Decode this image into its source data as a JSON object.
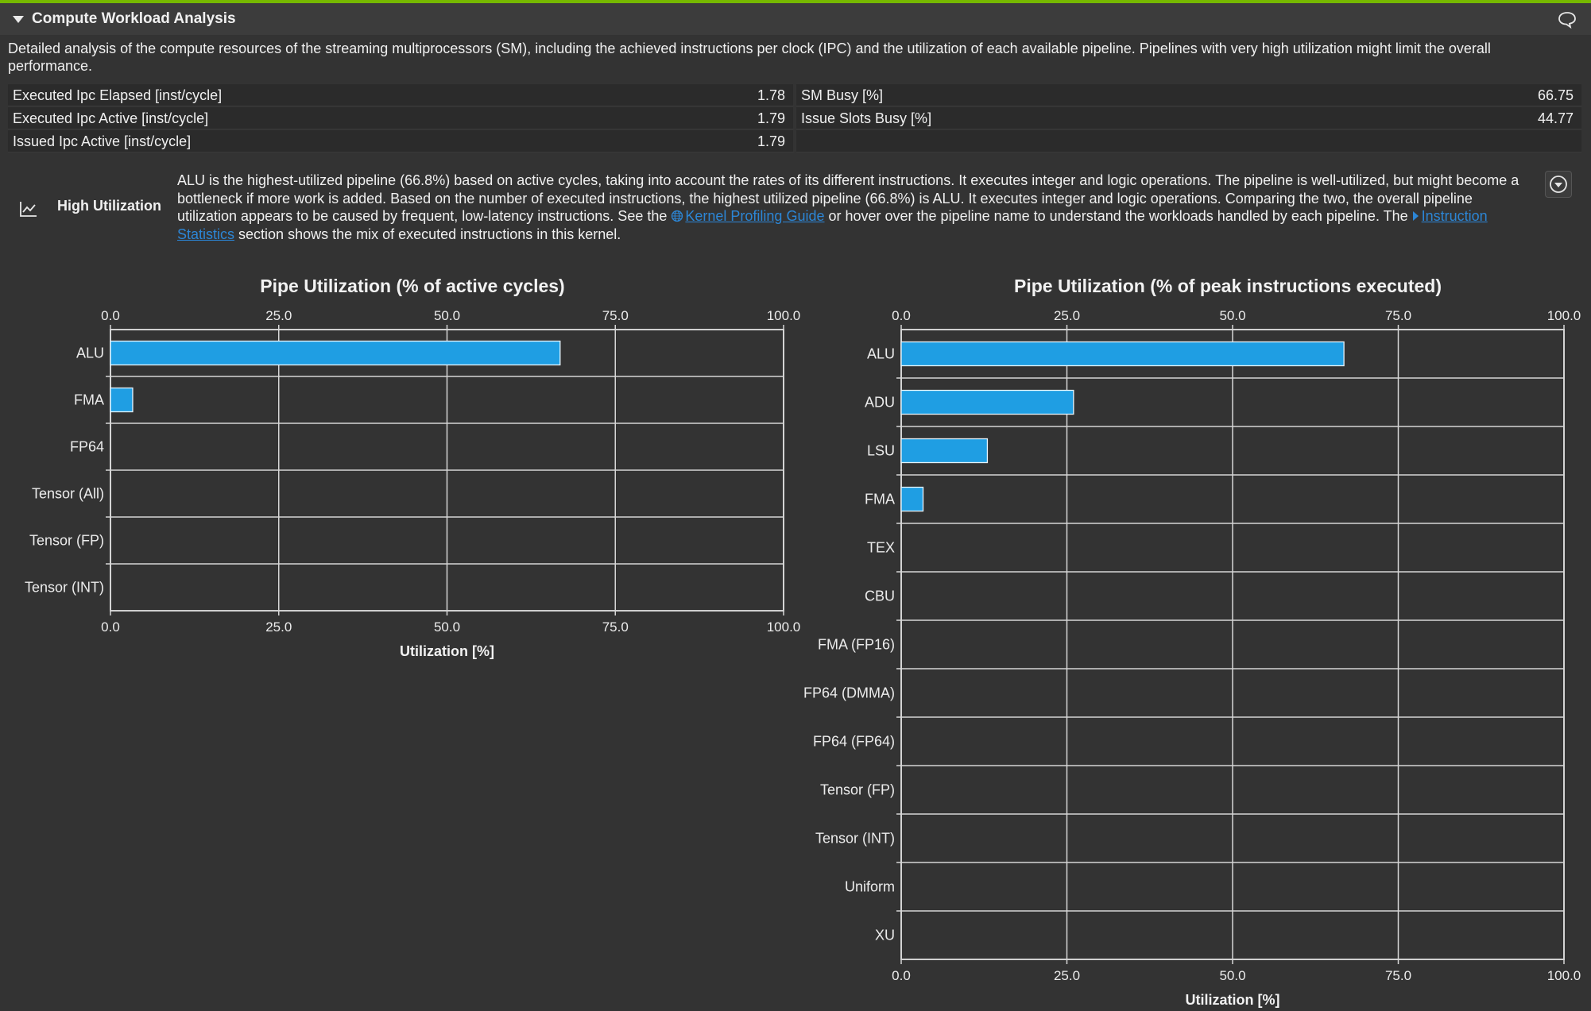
{
  "section": {
    "title": "Compute Workload Analysis",
    "description": "Detailed analysis of the compute resources of the streaming multiprocessors (SM), including the achieved instructions per clock (IPC) and the utilization of each available pipeline. Pipelines with very high utilization might limit the overall performance."
  },
  "metrics": {
    "left": [
      {
        "name": "Executed Ipc Elapsed [inst/cycle]",
        "value": "1.78"
      },
      {
        "name": "Executed Ipc Active [inst/cycle]",
        "value": "1.79"
      },
      {
        "name": "Issued Ipc Active [inst/cycle]",
        "value": "1.79"
      }
    ],
    "right": [
      {
        "name": "SM Busy [%]",
        "value": "66.75"
      },
      {
        "name": "Issue Slots Busy [%]",
        "value": "44.77"
      }
    ]
  },
  "rule": {
    "title": "High Utilization",
    "text_1": "ALU is the highest-utilized pipeline (66.8%) based on active cycles, taking into account the rates of its different instructions. It executes integer and logic operations. The pipeline is well-utilized, but might become a bottleneck if more work is added. Based on the number of executed instructions, the highest utilized pipeline (66.8%) is ALU. It executes integer and logic operations. Comparing the two, the overall pipeline utilization appears to be caused by frequent, low-latency instructions. See the ",
    "link_1": "Kernel Profiling Guide",
    "text_2": " or hover over the pipeline name to understand the workloads handled by each pipeline. The ",
    "link_2": "Instruction Statistics",
    "text_3": " section shows the mix of executed instructions in this kernel."
  },
  "icons": {
    "collapse": "triangle-down-icon",
    "comment": "speech-bubble-icon",
    "rule": "line-chart-icon",
    "expand": "chevron-down-circle-icon",
    "globe": "globe-icon",
    "link_arrow": "triangle-right-icon"
  },
  "colors": {
    "accent": "#76b900",
    "bar": "#1f9ee3",
    "link": "#2c86d6",
    "background": "#333333"
  },
  "chart_data": [
    {
      "type": "bar",
      "orientation": "horizontal",
      "title": "Pipe Utilization (% of active cycles)",
      "xlabel": "Utilization [%]",
      "ylabel": "",
      "xlim": [
        0,
        100
      ],
      "ticks": [
        "0.0",
        "25.0",
        "50.0",
        "75.0",
        "100.0"
      ],
      "categories": [
        "ALU",
        "FMA",
        "FP64",
        "Tensor (All)",
        "Tensor (FP)",
        "Tensor (INT)"
      ],
      "values": [
        66.8,
        3.3,
        0,
        0,
        0,
        0
      ],
      "grid": true
    },
    {
      "type": "bar",
      "orientation": "horizontal",
      "title": "Pipe Utilization (% of peak instructions executed)",
      "xlabel": "Utilization [%]",
      "ylabel": "",
      "xlim": [
        0,
        100
      ],
      "ticks": [
        "0.0",
        "25.0",
        "50.0",
        "75.0",
        "100.0"
      ],
      "categories": [
        "ALU",
        "ADU",
        "LSU",
        "FMA",
        "TEX",
        "CBU",
        "FMA (FP16)",
        "FP64 (DMMA)",
        "FP64 (FP64)",
        "Tensor (FP)",
        "Tensor (INT)",
        "Uniform",
        "XU"
      ],
      "values": [
        66.8,
        26.0,
        13.0,
        3.3,
        0,
        0,
        0,
        0,
        0,
        0,
        0,
        0,
        0
      ],
      "grid": true
    }
  ]
}
